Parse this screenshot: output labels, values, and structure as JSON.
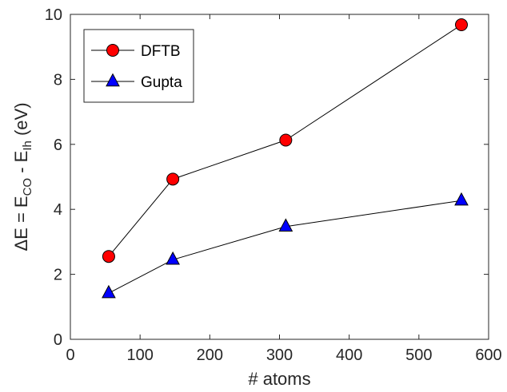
{
  "chart_data": {
    "type": "line",
    "xlabel": "# atoms",
    "ylabel": {
      "prefix": "ΔE = E",
      "sub1": "CO",
      "middle": " - E",
      "sub2": "Ih",
      "suffix": " (eV)"
    },
    "xlim": [
      0,
      600
    ],
    "ylim": [
      0,
      10
    ],
    "xticks": [
      0,
      100,
      200,
      300,
      400,
      500,
      600
    ],
    "yticks": [
      0,
      2,
      4,
      6,
      8,
      10
    ],
    "grid": false,
    "legend_position": "top-left",
    "series": [
      {
        "name": "DFTB",
        "marker": "circle",
        "color": "#ff0000",
        "line_color": "#000000",
        "x": [
          55,
          147,
          309,
          561
        ],
        "y": [
          2.55,
          4.93,
          6.13,
          9.68
        ]
      },
      {
        "name": "Gupta",
        "marker": "triangle",
        "color": "#0000ff",
        "line_color": "#000000",
        "x": [
          55,
          147,
          309,
          561
        ],
        "y": [
          1.42,
          2.45,
          3.47,
          4.27
        ]
      }
    ]
  }
}
